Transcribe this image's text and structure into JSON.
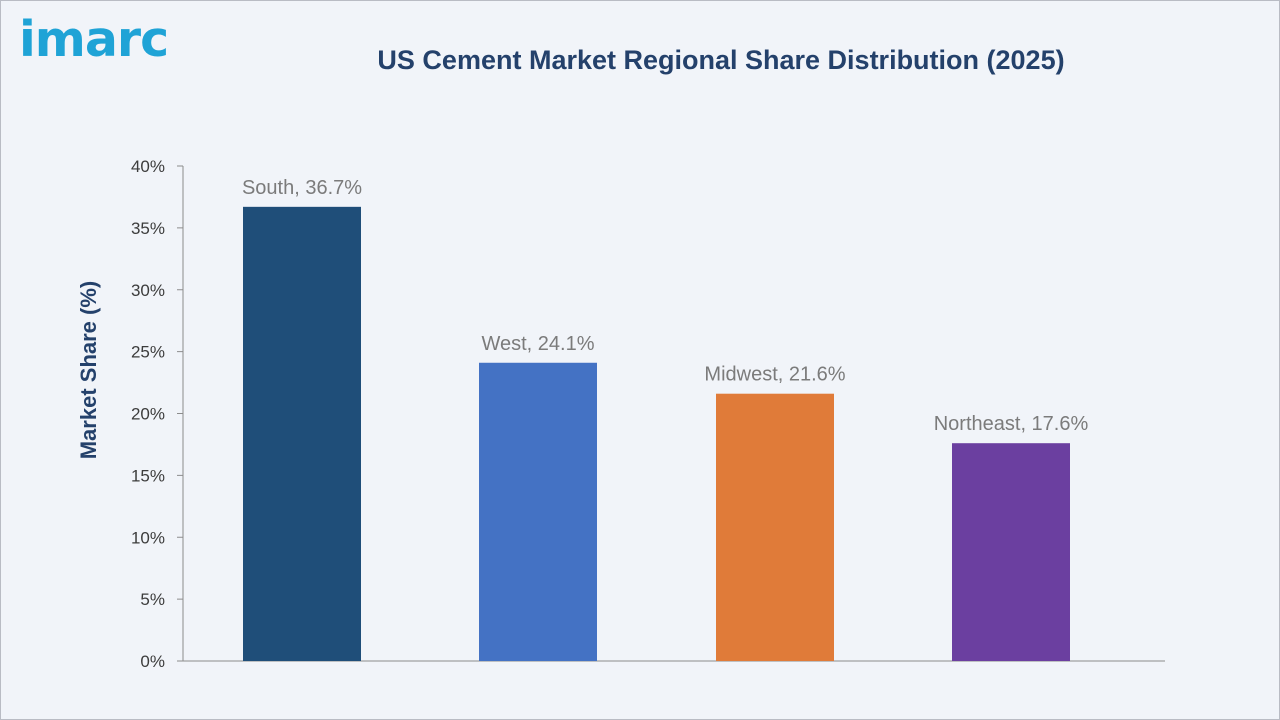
{
  "logo": {
    "text": "imarc"
  },
  "chart_data": {
    "type": "bar",
    "title": "US Cement Market Regional Share Distribution (2025)",
    "xlabel": "",
    "ylabel": "Market Share (%)",
    "ylim": [
      0,
      40
    ],
    "y_ticks": [
      "0%",
      "5%",
      "10%",
      "15%",
      "20%",
      "25%",
      "30%",
      "35%",
      "40%"
    ],
    "categories": [
      "South",
      "West",
      "Midwest",
      "Northeast"
    ],
    "values": [
      36.7,
      24.1,
      21.6,
      17.6
    ],
    "data_labels": [
      "South, 36.7%",
      "West, 24.1%",
      "Midwest, 21.6%",
      "Northeast, 17.6%"
    ],
    "colors": [
      "#1f4e79",
      "#4472c4",
      "#e07b39",
      "#6b3fa0"
    ],
    "grid": false,
    "legend": "none"
  }
}
